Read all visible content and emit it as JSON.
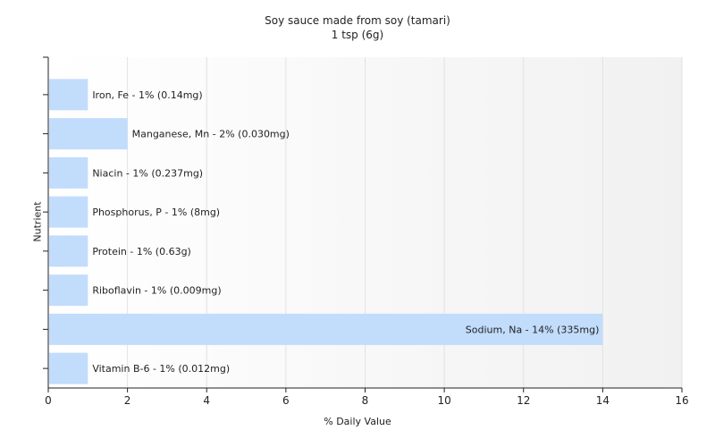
{
  "chart_data": {
    "type": "bar",
    "orientation": "horizontal",
    "title": "Soy sauce made from soy (tamari)",
    "subtitle": "1 tsp (6g)",
    "xlabel": "% Daily Value",
    "ylabel": "Nutrient",
    "xlim": [
      0,
      16
    ],
    "xticks": [
      0,
      2,
      4,
      6,
      8,
      10,
      12,
      14,
      16
    ],
    "grid": true,
    "bar_color": "#c2dcfc",
    "categories": [
      "Iron, Fe",
      "Manganese, Mn",
      "Niacin",
      "Phosphorus, P",
      "Protein",
      "Riboflavin",
      "Sodium, Na",
      "Vitamin B-6"
    ],
    "values": [
      1,
      2,
      1,
      1,
      1,
      1,
      14,
      1
    ],
    "labels": [
      "Iron, Fe - 1% (0.14mg)",
      "Manganese, Mn - 2% (0.030mg)",
      "Niacin - 1% (0.237mg)",
      "Phosphorus, P - 1% (8mg)",
      "Protein - 1% (0.63g)",
      "Riboflavin - 1% (0.009mg)",
      "Sodium, Na - 14% (335mg)",
      "Vitamin B-6 - 1% (0.012mg)"
    ]
  }
}
